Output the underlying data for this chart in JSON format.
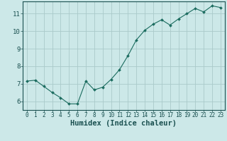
{
  "x": [
    0,
    1,
    2,
    3,
    4,
    5,
    6,
    7,
    8,
    9,
    10,
    11,
    12,
    13,
    14,
    15,
    16,
    17,
    18,
    19,
    20,
    21,
    22,
    23
  ],
  "y": [
    7.15,
    7.2,
    6.85,
    6.5,
    6.2,
    5.85,
    5.85,
    7.15,
    6.65,
    6.8,
    7.25,
    7.8,
    8.6,
    9.5,
    10.05,
    10.4,
    10.65,
    10.35,
    10.7,
    11.0,
    11.3,
    11.1,
    11.45,
    11.35
  ],
  "xlabel": "Humidex (Indice chaleur)",
  "ylim": [
    5.5,
    11.7
  ],
  "xlim": [
    -0.5,
    23.5
  ],
  "yticks": [
    6,
    7,
    8,
    9,
    10,
    11
  ],
  "xticks": [
    0,
    1,
    2,
    3,
    4,
    5,
    6,
    7,
    8,
    9,
    10,
    11,
    12,
    13,
    14,
    15,
    16,
    17,
    18,
    19,
    20,
    21,
    22,
    23
  ],
  "line_color": "#1a6b5e",
  "marker_color": "#1a6b5e",
  "bg_color": "#cce8e8",
  "grid_color": "#aacaca",
  "tick_label_color": "#1a5050",
  "xlabel_fontsize": 7.5,
  "tick_fontsize": 5.5,
  "ytick_fontsize": 6.5
}
